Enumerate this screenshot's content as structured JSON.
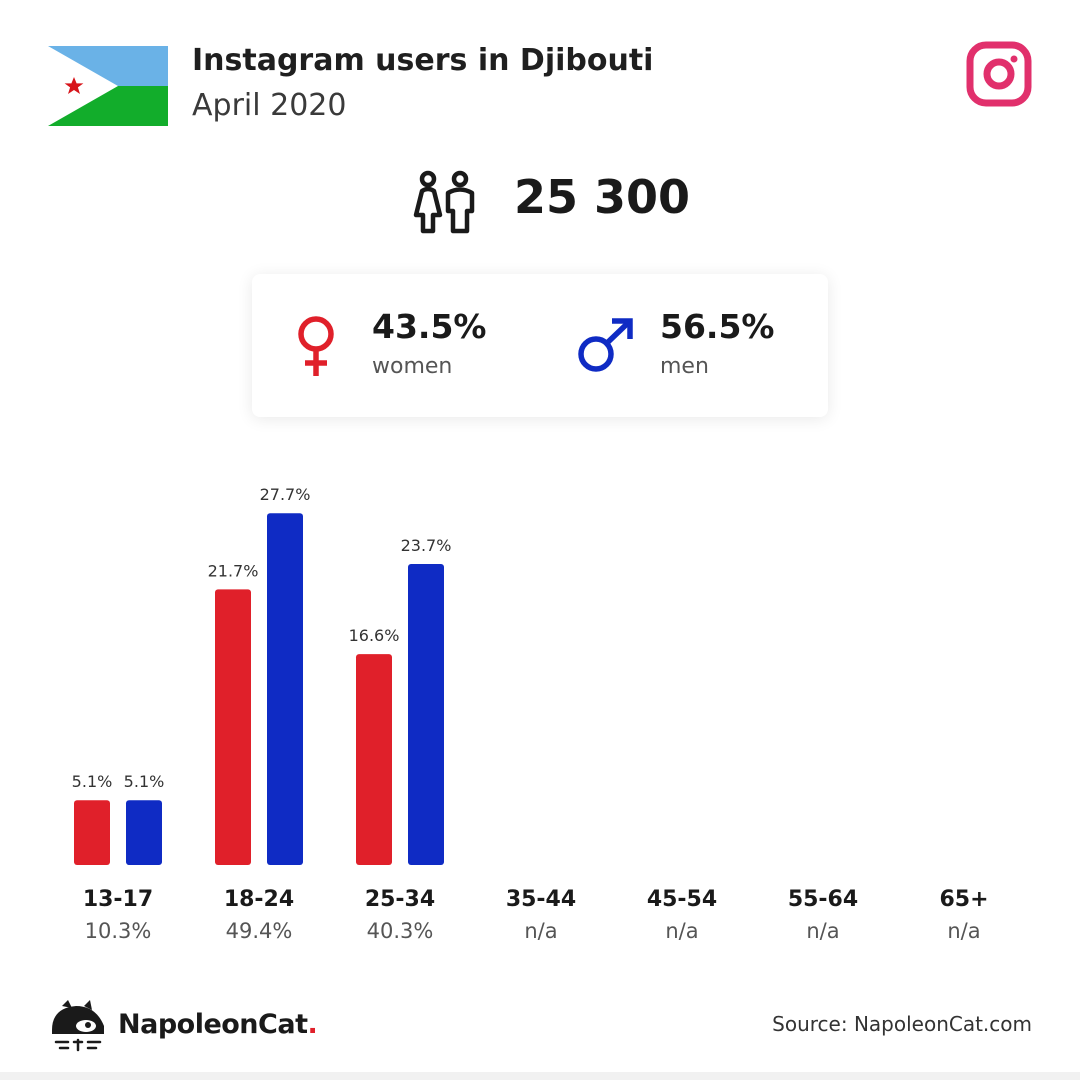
{
  "header": {
    "title": "Instagram users in Djibouti",
    "subtitle": "April 2020",
    "flag_icon": "djibouti-flag",
    "platform_icon": "instagram-icon"
  },
  "summary": {
    "total_users": "25 300",
    "women": {
      "value": "43.5%",
      "label": "women"
    },
    "men": {
      "value": "56.5%",
      "label": "men"
    }
  },
  "colors": {
    "women": "#e0202a",
    "men": "#0f2bc4",
    "instagram": "#e1306c",
    "flag_blue": "#6ab2e7",
    "flag_green": "#12ad2b",
    "flag_star": "#d7141a"
  },
  "chart_data": {
    "type": "bar",
    "title": "",
    "xlabel": "",
    "ylabel": "",
    "categories": [
      "13-17",
      "18-24",
      "25-34",
      "35-44",
      "45-54",
      "55-64",
      "65+"
    ],
    "category_totals": [
      "10.3%",
      "49.4%",
      "40.3%",
      "n/a",
      "n/a",
      "n/a",
      "n/a"
    ],
    "series": [
      {
        "key": "women",
        "values": [
          5.1,
          21.7,
          16.6,
          null,
          null,
          null,
          null
        ],
        "color": "#e0202a"
      },
      {
        "key": "men",
        "values": [
          5.1,
          27.7,
          23.7,
          null,
          null,
          null,
          null
        ],
        "color": "#0f2bc4"
      }
    ],
    "value_format": "%",
    "ylim": [
      0,
      27.7
    ],
    "grid": false,
    "legend": "none"
  },
  "footer": {
    "brand_name": "NapoleonCat",
    "brand_dot": ".",
    "source": "Source: NapoleonCat.com"
  }
}
